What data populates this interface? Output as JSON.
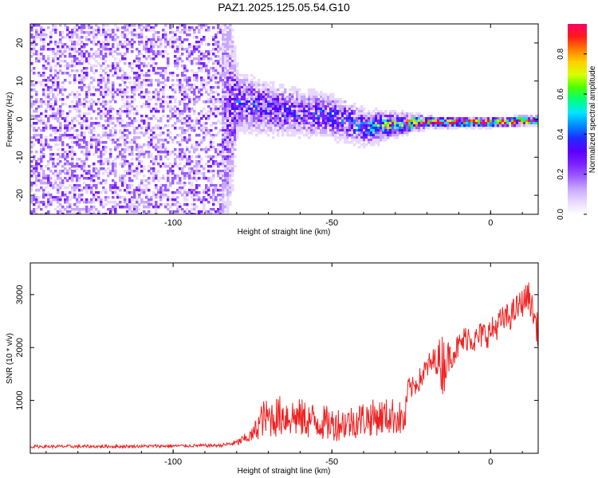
{
  "title": "PAZ1.2025.125.05.54.G10",
  "chart_data": [
    {
      "type": "heatmap",
      "xlabel": "Height of straight line (km)",
      "ylabel": "Frequency (Hz)",
      "xlim": [
        -145,
        15
      ],
      "ylim": [
        -25,
        25
      ],
      "xticks": [
        -100,
        -50,
        0
      ],
      "yticks": [
        20,
        10,
        0,
        -10,
        -20
      ],
      "xtick_labels": [
        "-100",
        "-50",
        "0"
      ],
      "ytick_labels": [
        "20",
        "10",
        "0",
        "-10",
        "-20"
      ],
      "colorbar": {
        "label": "Normalized spectral amplitude",
        "range": [
          0,
          0.95
        ],
        "ticks": [
          0.0,
          0.2,
          0.4,
          0.6,
          0.8
        ],
        "tick_labels": [
          "0.0",
          "0.2",
          "0.4",
          "0.6",
          "0.8"
        ],
        "colors": [
          "#ffffff",
          "#e8d8ff",
          "#c8a8ff",
          "#9b5cff",
          "#7a1fff",
          "#5a00ff",
          "#1f2bff",
          "#008cff",
          "#00e5ff",
          "#00ff7f",
          "#4dff00",
          "#d8ff00",
          "#ffd000",
          "#ff7a00",
          "#ff1a1a",
          "#ff0066"
        ]
      },
      "ridge": {
        "x": [
          -145,
          -85,
          -80,
          -70,
          -60,
          -50,
          -40,
          -30,
          -20,
          -10,
          0,
          15
        ],
        "y": [
          0,
          0,
          5,
          3,
          2,
          1,
          -2,
          -1,
          -0.5,
          -0.5,
          -0.5,
          0
        ],
        "spread_hz": [
          50,
          50,
          8,
          7,
          6,
          6,
          5,
          3,
          1.5,
          1.2,
          1.2,
          1.2
        ],
        "peak": [
          0.15,
          0.15,
          0.3,
          0.3,
          0.3,
          0.3,
          0.35,
          0.6,
          0.85,
          0.9,
          0.9,
          0.85
        ]
      }
    },
    {
      "type": "line",
      "xlabel": "Height of straight line (km)",
      "ylabel": "SNR (10 * v/v)",
      "xlim": [
        -145,
        15
      ],
      "ylim": [
        0,
        3600
      ],
      "xticks": [
        -100,
        -50,
        0
      ],
      "yticks": [
        1000,
        2000,
        3000
      ],
      "xtick_labels": [
        "-100",
        "-50",
        "0"
      ],
      "ytick_labels": [
        "1000",
        "2000",
        "3000"
      ],
      "color": "#ee2222",
      "series": [
        {
          "x": [
            -145,
            -120,
            -100,
            -85,
            -80,
            -75,
            -72,
            -70,
            -65,
            -60,
            -55,
            -50,
            -45,
            -40,
            -35,
            -30,
            -27,
            -26,
            -25,
            -22,
            -20,
            -17,
            -15,
            -13,
            -10,
            -7,
            -5,
            -3,
            0,
            3,
            6,
            9,
            12,
            15
          ],
          "y": [
            120,
            120,
            130,
            140,
            180,
            300,
            550,
            550,
            600,
            550,
            500,
            450,
            480,
            550,
            580,
            600,
            500,
            1200,
            1150,
            1350,
            1550,
            1700,
            1500,
            1750,
            1950,
            2150,
            2050,
            2150,
            2200,
            2400,
            2500,
            2700,
            2900,
            2200
          ],
          "noise": [
            60,
            60,
            60,
            60,
            120,
            280,
            700,
            750,
            800,
            750,
            700,
            650,
            650,
            700,
            700,
            700,
            650,
            400,
            400,
            450,
            500,
            550,
            1300,
            550,
            500,
            550,
            500,
            550,
            550,
            550,
            550,
            550,
            550,
            600
          ]
        }
      ]
    }
  ]
}
